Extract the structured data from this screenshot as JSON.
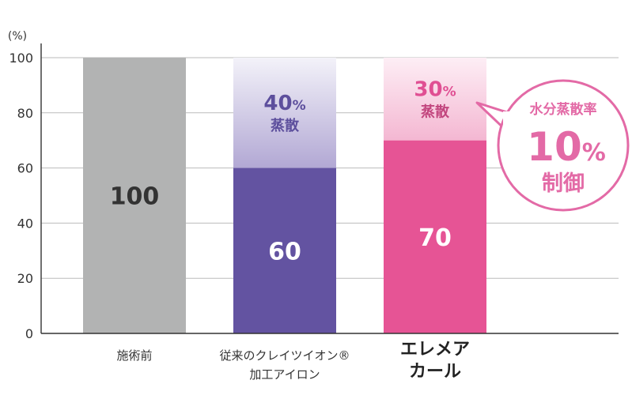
{
  "chart_data": {
    "type": "bar",
    "unit_label": "(%)",
    "ylim": [
      0,
      100
    ],
    "yticks": [
      "0",
      "20",
      "40",
      "60",
      "80",
      "100"
    ],
    "grid": true,
    "categories": [
      {
        "lines": [
          "施術前"
        ],
        "bold": false
      },
      {
        "lines": [
          "従来のクレイツイオン®",
          "加工アイロン"
        ],
        "bold": false
      },
      {
        "lines": [
          "エレメア",
          "カール"
        ],
        "bold": true
      }
    ],
    "values": [
      100,
      60,
      70
    ],
    "value_labels": [
      "100",
      "60",
      "70"
    ],
    "evaporation": [
      null,
      {
        "percent": "40",
        "pct_sign": "%",
        "label": "蒸散"
      },
      {
        "percent": "30",
        "pct_sign": "%",
        "label": "蒸散"
      }
    ],
    "callout": {
      "line1": "水分蒸散率",
      "big_number": "10",
      "pct_sign": "%",
      "line3": "制御"
    },
    "colors": {
      "bar_before": "#b2b3b3",
      "bar_conventional": "#6353a1",
      "bar_elemea": "#e65495",
      "fade_conventional_top": "#f3f2f9",
      "fade_conventional_bottom": "#b2a8d4",
      "fade_elemea_top": "#fdeef5",
      "fade_elemea_bottom": "#f4b7d2",
      "text_conventional_pct": "#5d4f9d",
      "text_elemea_pct": "#e04f93",
      "callout": "#e36aa6",
      "axis": "#333333",
      "grid": "#bbbbbb",
      "value_dark": "#333333",
      "value_light": "#ffffff"
    }
  }
}
